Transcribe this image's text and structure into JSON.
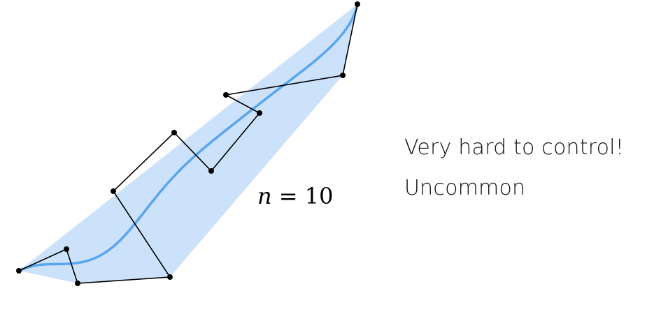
{
  "labels": {
    "degree_var": "n",
    "degree_eq": "=",
    "degree_value": "10",
    "caption_line1": "Very hard to control!",
    "caption_line2": "Uncommon"
  },
  "colors": {
    "hull_fill": "#cce2fb",
    "curve": "#5aa5f0",
    "polygon": "#000000",
    "points": "#000000"
  }
}
